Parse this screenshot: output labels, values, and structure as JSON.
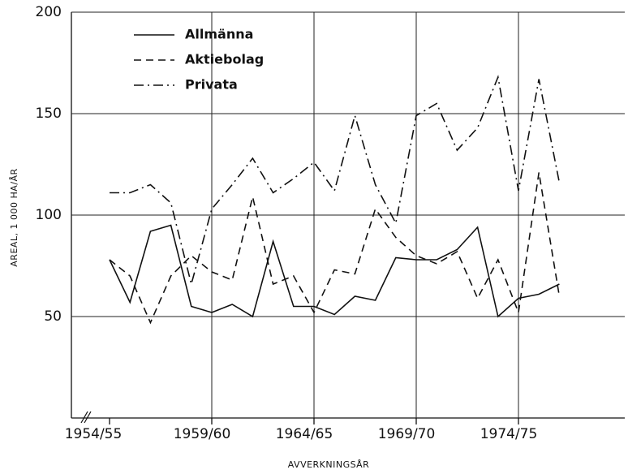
{
  "chart_data": {
    "type": "line",
    "xlabel": "AVVERKNINGSÅR",
    "ylabel": "AREAL, 1 000 HA/ÅR",
    "categories": [
      "1954/55",
      null,
      null,
      null,
      null,
      "1959/60",
      null,
      null,
      null,
      null,
      "1964/65",
      null,
      null,
      null,
      null,
      "1969/70",
      null,
      null,
      null,
      null,
      "1974/75",
      null,
      null
    ],
    "series": [
      {
        "name": "Allmänna",
        "color": "#111111",
        "style": "solid",
        "values": [
          78,
          57,
          92,
          95,
          55,
          52,
          56,
          50,
          87,
          55,
          55,
          51,
          60,
          58,
          79,
          78,
          78,
          83,
          94,
          50,
          59,
          61,
          66
        ]
      },
      {
        "name": "Aktiebolag",
        "color": "#111111",
        "style": "dashed",
        "values": [
          78,
          70,
          47,
          70,
          80,
          72,
          68,
          109,
          66,
          70,
          52,
          73,
          71,
          103,
          89,
          80,
          76,
          82,
          59,
          78,
          52,
          121,
          60
        ]
      },
      {
        "name": "Privata",
        "color": "#111111",
        "style": "dashdot",
        "values": [
          111,
          111,
          115,
          106,
          66,
          103,
          115,
          128,
          111,
          118,
          126,
          112,
          149,
          115,
          96,
          149,
          155,
          132,
          143,
          168,
          112,
          167,
          116
        ]
      }
    ],
    "ylim": [
      0,
      200
    ],
    "yticks": [
      50,
      100,
      150,
      200
    ],
    "grid": true,
    "legend": "upper left"
  }
}
